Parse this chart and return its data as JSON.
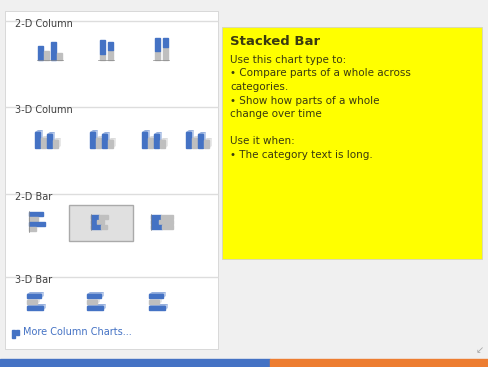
{
  "bg_color": "#f0f0f0",
  "panel_bg": "#ffffff",
  "yellow_bg": "#ffff00",
  "blue_bar": "#4472c4",
  "gray_bar": "#bfbfbf",
  "dark_text": "#404040",
  "title_text": "Stacked Bar",
  "body_lines": [
    "Use this chart type to:",
    "• Compare parts of a whole across",
    "categories.",
    "• Show how parts of a whole",
    "change over time",
    "",
    "Use it when:",
    "• The category text is long."
  ],
  "section_labels": [
    "2-D Column",
    "3-D Column",
    "2-D Bar",
    "3-D Bar"
  ],
  "bottom_bar_blue": "#4472c4",
  "bottom_bar_orange": "#ed7d31",
  "more_charts_text": "More Column Charts...",
  "highlight_box_color": "#e8e8e8"
}
